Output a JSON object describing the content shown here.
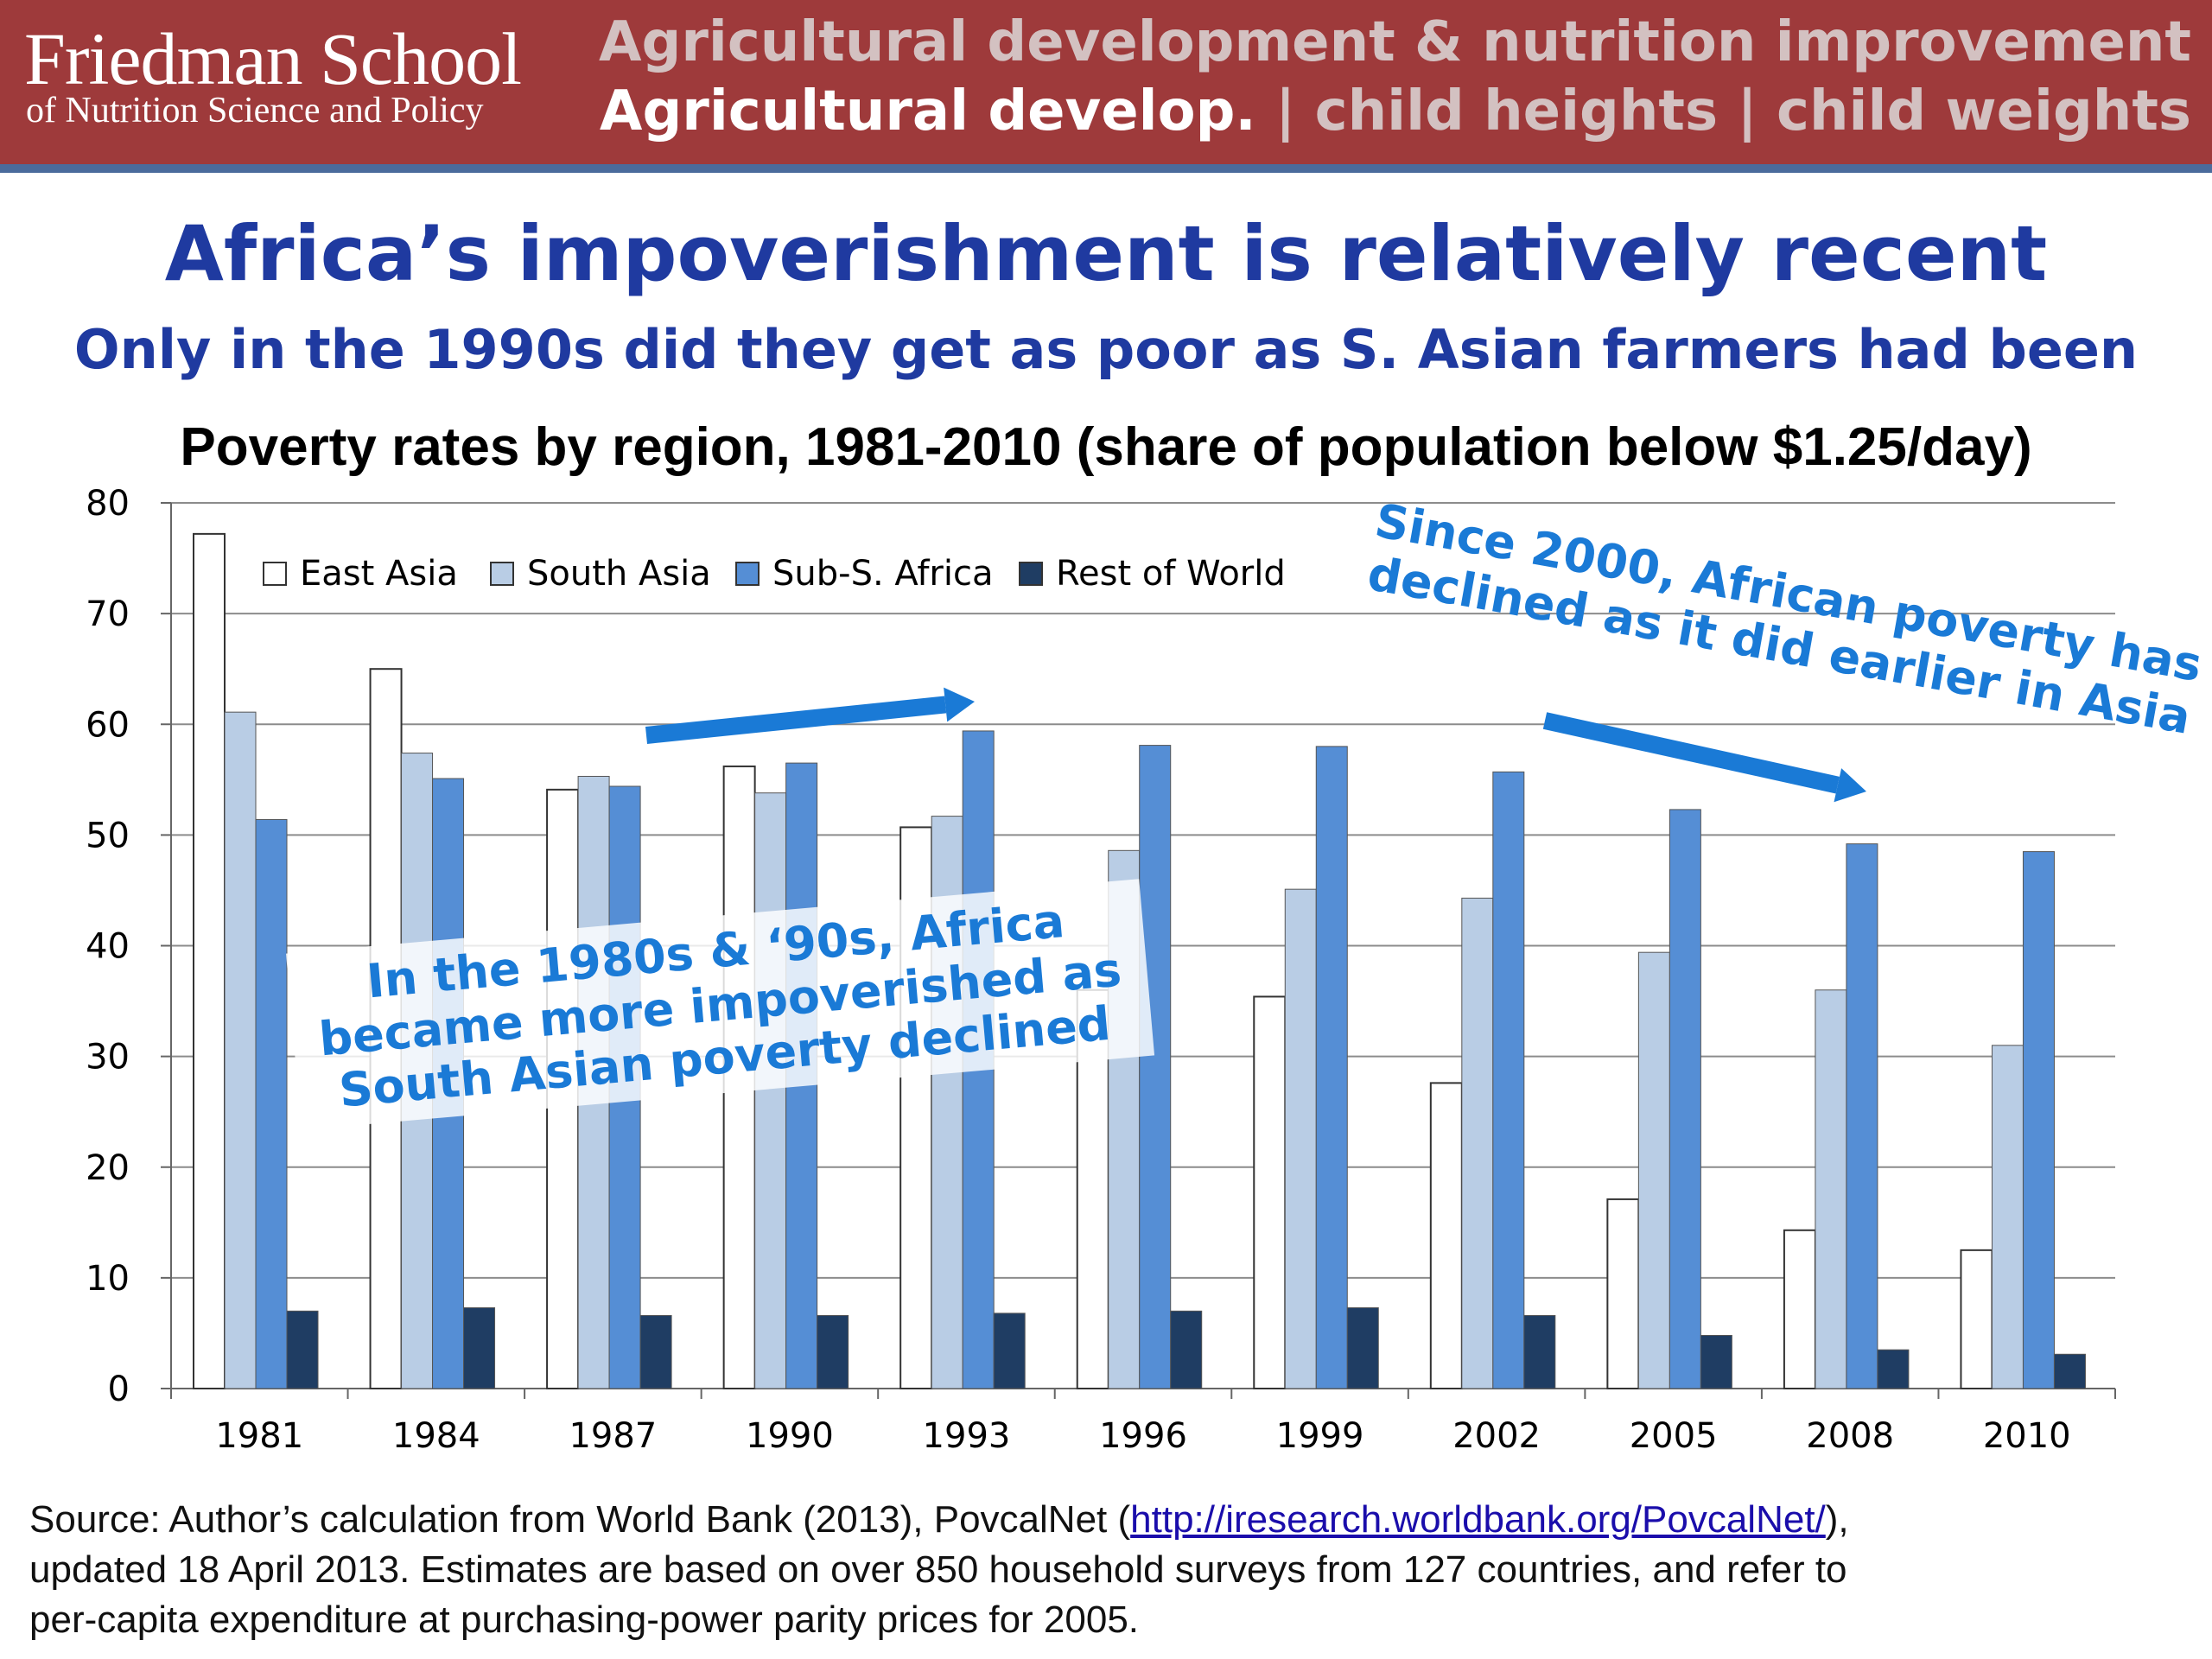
{
  "header": {
    "logo_main": "Friedman School",
    "logo_sub": "of Nutrition Science and Policy",
    "line1": "Agricultural development & nutrition improvement",
    "line2_active": "Agricultural develop.",
    "sep1": " | ",
    "line2_item2": "child heights",
    "sep2": " | ",
    "line2_item3": "child weights"
  },
  "title": "Africa’s impoverishment  is relatively recent",
  "subtitle": "Only in the 1990s did they get as poor as S. Asian farmers had been",
  "callouts": {
    "left": [
      "In the 1980s & ‘90s, Africa",
      "became more impoverished as",
      "South Asian poverty declined"
    ],
    "right": [
      "Since 2000, African poverty has",
      "declined as it did earlier in Asia"
    ]
  },
  "source": {
    "line1_prefix": "Source:  Author’s calculation from World Bank (2013), PovcalNet  (",
    "link": "http://iresearch.worldbank.org/PovcalNet/",
    "line1_suffix": "),",
    "line2": "updated 18 April 2013.  Estimates are based on over 850 household surveys from 127 countries, and refer to",
    "line3": "per-capita expenditure at purchasing-power parity prices for 2005."
  },
  "colors": {
    "header_bg": "#9e3a3b",
    "title_blue": "#1f3aa0",
    "callout_blue": "#1a7ad6",
    "east_asia": "#ffffff",
    "south_asia": "#b9cde5",
    "africa": "#558ed5",
    "rest_of_world": "#1f3d63"
  },
  "chart_data": {
    "type": "bar",
    "title": "Poverty rates by region, 1981-2010 (share of population below $1.25/day)",
    "categories": [
      "1981",
      "1984",
      "1987",
      "1990",
      "1993",
      "1996",
      "1999",
      "2002",
      "2005",
      "2008",
      "2010"
    ],
    "series": [
      {
        "name": "East Asia",
        "values": [
          77.2,
          65.0,
          54.1,
          56.2,
          50.7,
          36.0,
          35.4,
          27.6,
          17.1,
          14.3,
          12.5
        ]
      },
      {
        "name": "South Asia",
        "values": [
          61.1,
          57.4,
          55.3,
          53.8,
          51.7,
          48.6,
          45.1,
          44.3,
          39.4,
          36.0,
          31.0
        ]
      },
      {
        "name": "Sub-S. Africa",
        "values": [
          51.4,
          55.1,
          54.4,
          56.5,
          59.4,
          58.1,
          58.0,
          55.7,
          52.3,
          49.2,
          48.5
        ]
      },
      {
        "name": "Rest of World",
        "values": [
          7.0,
          7.3,
          6.6,
          6.6,
          6.8,
          7.0,
          7.3,
          6.6,
          4.8,
          3.5,
          3.1
        ]
      }
    ],
    "ylim": [
      0,
      80
    ],
    "yticks": [
      0,
      10,
      20,
      30,
      40,
      50,
      60,
      70,
      80
    ],
    "grid": true,
    "legend": "top-left"
  }
}
